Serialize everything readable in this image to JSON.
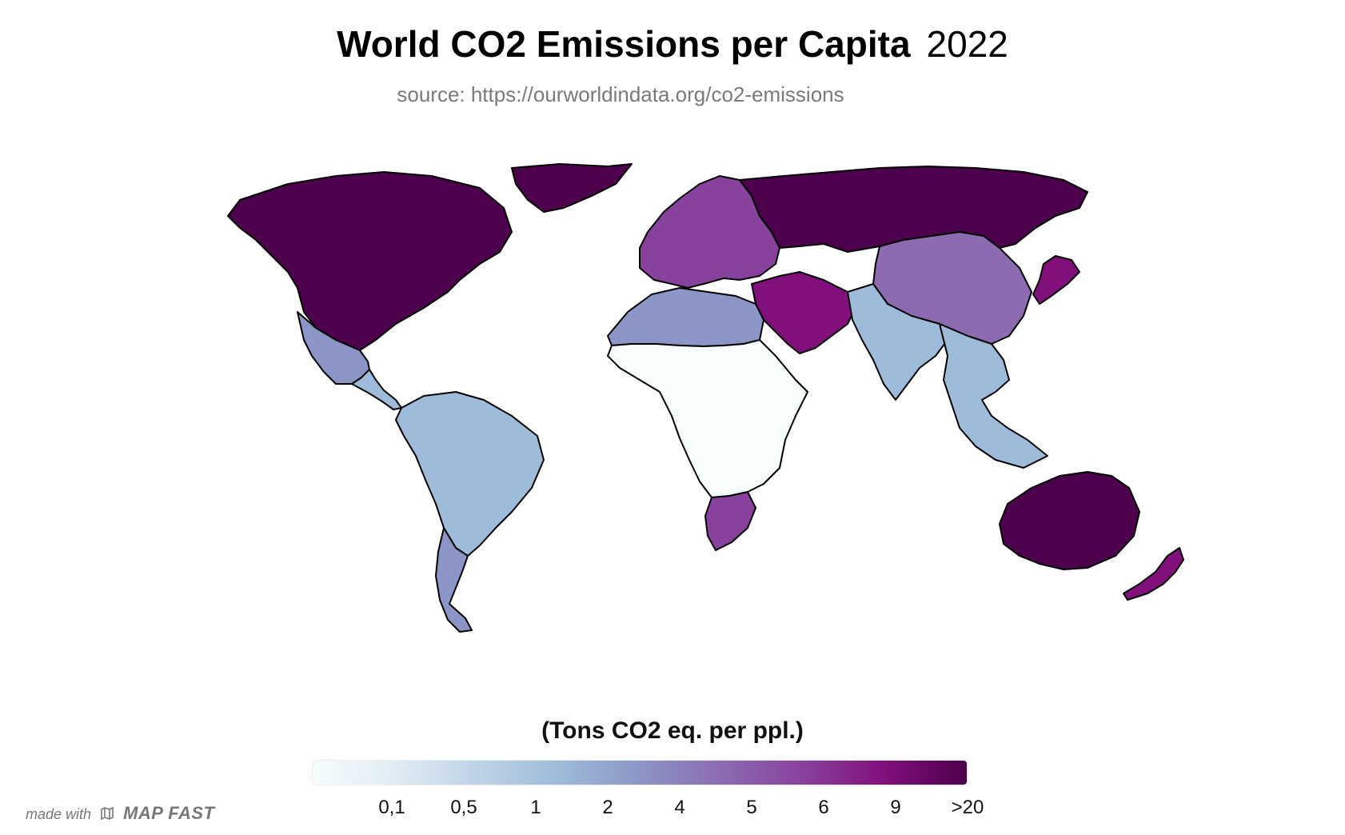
{
  "header": {
    "title": "World CO2 Emissions per Capita",
    "year": "2022",
    "source": "source: https://ourworldindata.org/co2-emissions"
  },
  "legend": {
    "title": "(Tons CO2 eq. per ppl.)",
    "ticks": [
      "0,1",
      "0,5",
      "1",
      "2",
      "4",
      "5",
      "6",
      "9",
      ">20"
    ],
    "colors": [
      "#f7fcfd",
      "#e0ecf4",
      "#bfd3e6",
      "#9ebcda",
      "#8c96c6",
      "#8c6bb1",
      "#88419d",
      "#810f7c",
      "#4d004b"
    ]
  },
  "brand": {
    "prefix": "made with",
    "name": "MAP FAST"
  },
  "map": {
    "regions": [
      {
        "name": "North America",
        "level": 8
      },
      {
        "name": "Greenland",
        "level": 8
      },
      {
        "name": "Mexico",
        "level": 4
      },
      {
        "name": "Central America",
        "level": 3
      },
      {
        "name": "South America",
        "level": 3
      },
      {
        "name": "Argentina",
        "level": 4
      },
      {
        "name": "Europe",
        "level": 6
      },
      {
        "name": "Russia",
        "level": 8
      },
      {
        "name": "Middle East",
        "level": 7
      },
      {
        "name": "North Africa",
        "level": 4
      },
      {
        "name": "Sub-Saharan Africa",
        "level": 0
      },
      {
        "name": "South Africa",
        "level": 6
      },
      {
        "name": "China",
        "level": 5
      },
      {
        "name": "India",
        "level": 3
      },
      {
        "name": "Southeast Asia",
        "level": 3
      },
      {
        "name": "Japan",
        "level": 7
      },
      {
        "name": "Australia",
        "level": 8
      },
      {
        "name": "New Zealand",
        "level": 7
      }
    ]
  }
}
